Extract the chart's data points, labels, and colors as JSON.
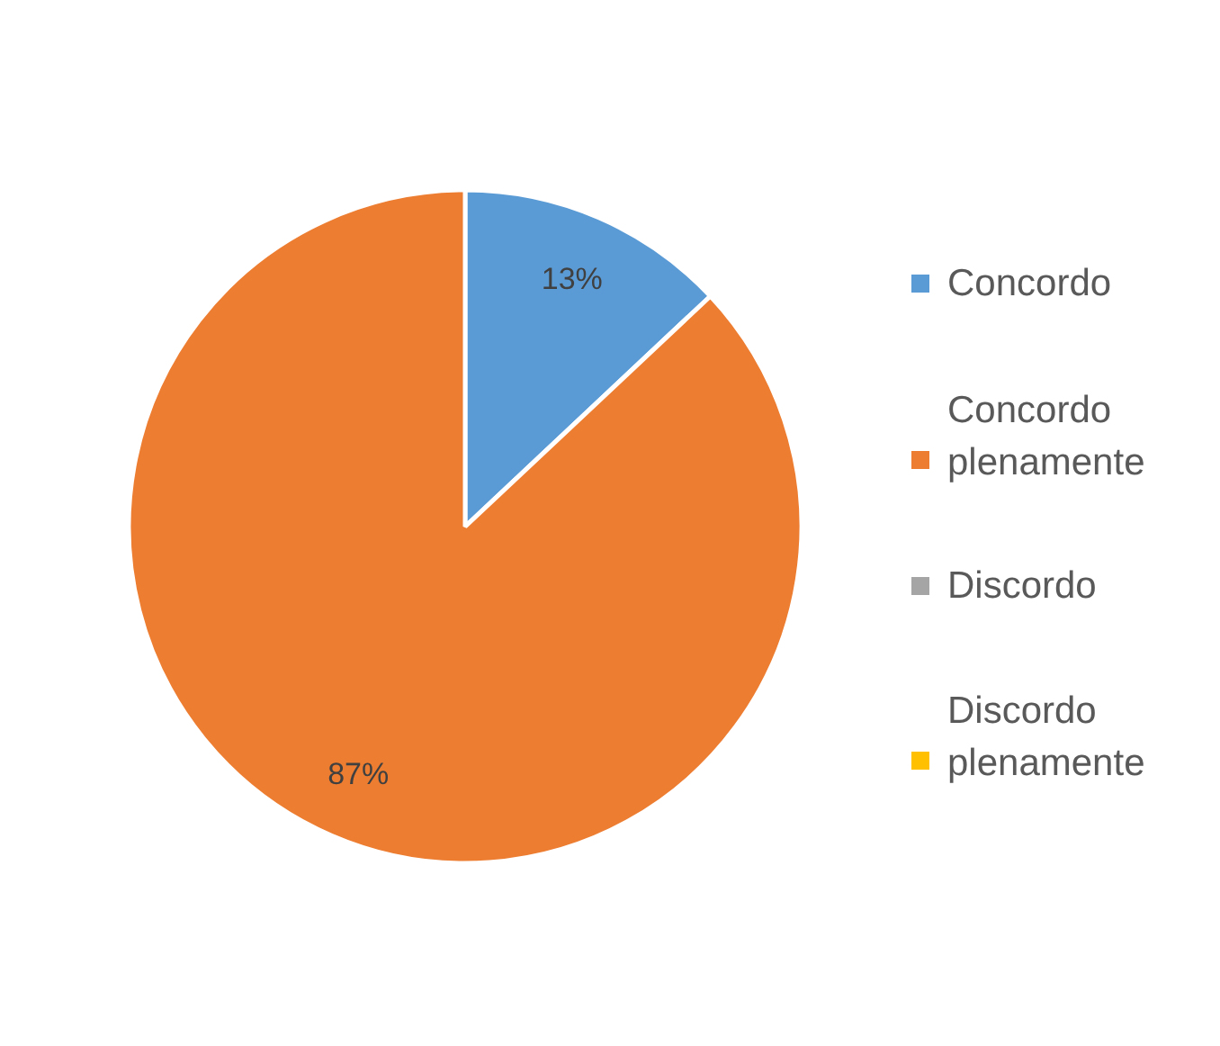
{
  "chart_data": {
    "type": "pie",
    "categories": [
      "Concordo",
      "Concordo plenamente",
      "Discordo",
      "Discordo plenamente"
    ],
    "values": [
      13,
      87,
      0,
      0
    ],
    "colors": [
      "#5b9bd5",
      "#ed7d31",
      "#a5a5a5",
      "#ffc000"
    ],
    "value_labels": [
      "13%",
      "87%",
      null,
      null
    ],
    "legend": "right"
  }
}
